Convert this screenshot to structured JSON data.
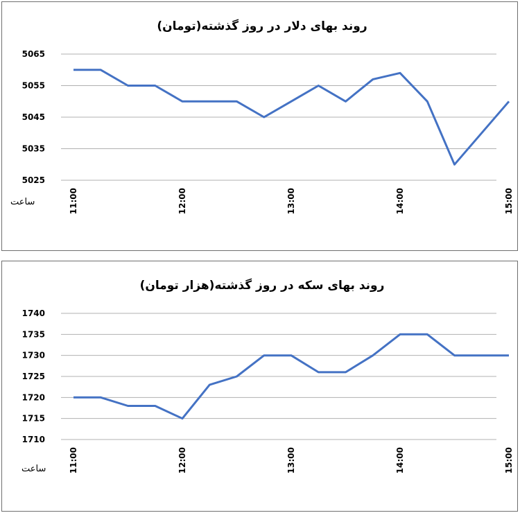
{
  "chart_data": [
    {
      "type": "line",
      "title": "روند بهای دلار در روز گذشته(تومان)",
      "xlabel": "ساعت",
      "ylabel": "",
      "ylim": [
        5025,
        5065
      ],
      "yticks": [
        "5065",
        "5055",
        "5045",
        "5035",
        "5025"
      ],
      "xticks": [
        "11:00",
        "12:00",
        "13:00",
        "14:00",
        "15:00"
      ],
      "x": [
        11.0,
        11.25,
        11.5,
        11.75,
        12.0,
        12.25,
        12.5,
        12.75,
        13.0,
        13.25,
        13.5,
        13.75,
        14.0,
        14.25,
        14.5,
        15.0
      ],
      "series": [
        {
          "name": "",
          "values": [
            5060,
            5060,
            5055,
            5055,
            5050,
            5050,
            5050,
            5045,
            5050,
            5055,
            5050,
            5057,
            5059,
            5050,
            5030,
            5050
          ]
        }
      ],
      "grid": true,
      "color": "#4472c4"
    },
    {
      "type": "line",
      "title": "روند بهای سکه در روز گذشته(هزار تومان)",
      "xlabel": "ساعت",
      "ylabel": "",
      "ylim": [
        1710,
        1740
      ],
      "yticks": [
        "1740",
        "1735",
        "1730",
        "1725",
        "1720",
        "1715",
        "1710"
      ],
      "xticks": [
        "11:00",
        "12:00",
        "13:00",
        "14:00",
        "15:00"
      ],
      "x": [
        11.0,
        11.25,
        11.5,
        11.75,
        12.0,
        12.25,
        12.5,
        12.75,
        13.0,
        13.25,
        13.5,
        13.75,
        14.0,
        14.25,
        14.5,
        15.0
      ],
      "series": [
        {
          "name": "",
          "values": [
            1720,
            1720,
            1718,
            1718,
            1715,
            1723,
            1725,
            1730,
            1730,
            1726,
            1726,
            1730,
            1735,
            1735,
            1730,
            1730
          ]
        }
      ],
      "grid": true,
      "color": "#4472c4"
    }
  ]
}
